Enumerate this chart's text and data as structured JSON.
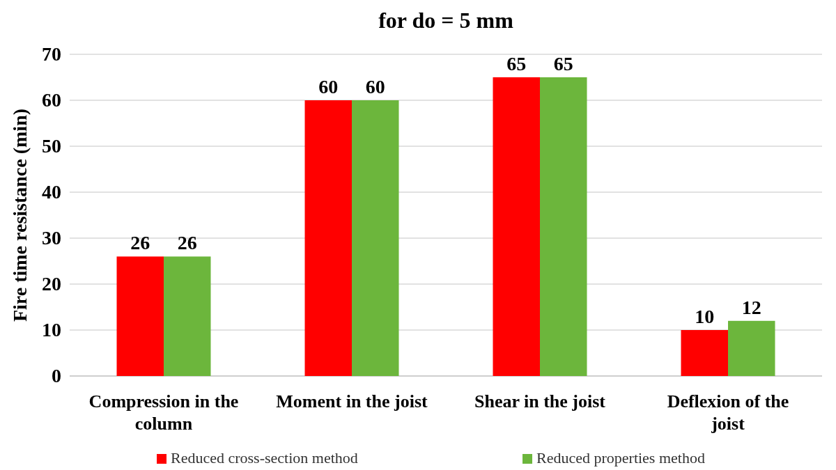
{
  "chart_data": {
    "type": "bar",
    "title": "for do = 5 mm",
    "ylabel": "Fire time resistance (min)",
    "categories": [
      "Compression in the column",
      "Moment in the joist",
      "Shear in the joist",
      "Deflexion of the joist"
    ],
    "series": [
      {
        "name": "Reduced cross-section method",
        "color": "#ff0000",
        "values": [
          26,
          60,
          65,
          10
        ]
      },
      {
        "name": "Reduced properties method",
        "color": "#6cb63c",
        "values": [
          26,
          60,
          65,
          12
        ]
      }
    ],
    "ylim": [
      0,
      70
    ],
    "yticks": [
      0,
      10,
      20,
      30,
      40,
      50,
      60,
      70
    ],
    "grid": "y",
    "legend": "bottom",
    "data_labels": true
  }
}
